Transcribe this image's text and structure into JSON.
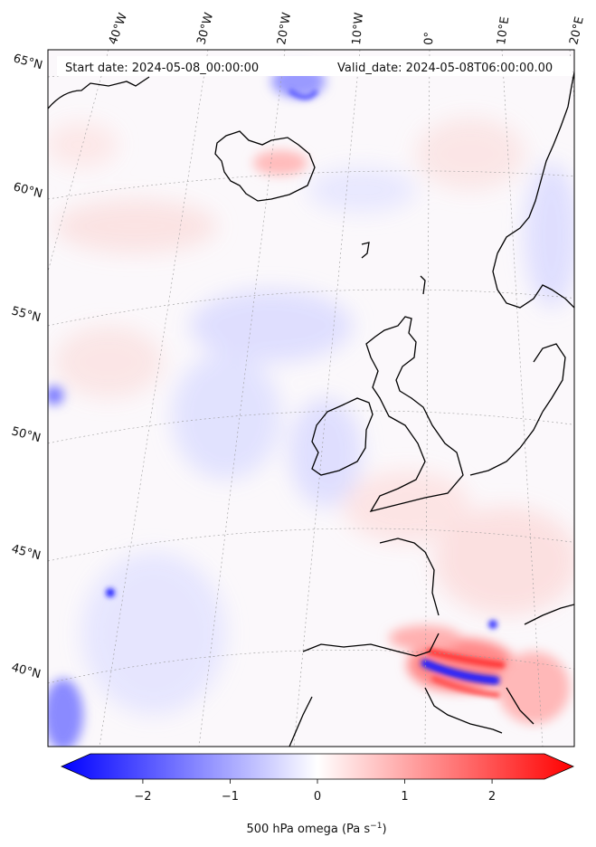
{
  "header": {
    "start_date": "Start date: 2024-05-08_00:00:00",
    "valid_date": "Valid_date: 2024-05-08T06:00:00.00"
  },
  "map": {
    "projection": "conic",
    "longitude_labels": [
      "40°W",
      "30°W",
      "20°W",
      "10°W",
      "0°",
      "10°E",
      "20°E"
    ],
    "latitude_labels": [
      "65°N",
      "60°N",
      "55°N",
      "50°N",
      "45°N",
      "40°N"
    ],
    "gridlines": true
  },
  "colorbar": {
    "label": "500 hPa omega (Pa s",
    "label_sup": "−1",
    "label_close": ")",
    "ticks": [
      "−2",
      "−1",
      "0",
      "1",
      "2"
    ],
    "range": [
      -2.6,
      2.6
    ],
    "colormap": "bwr",
    "low_color": "#0000ff",
    "mid_color": "#ffffff",
    "high_color": "#ff0000"
  }
}
